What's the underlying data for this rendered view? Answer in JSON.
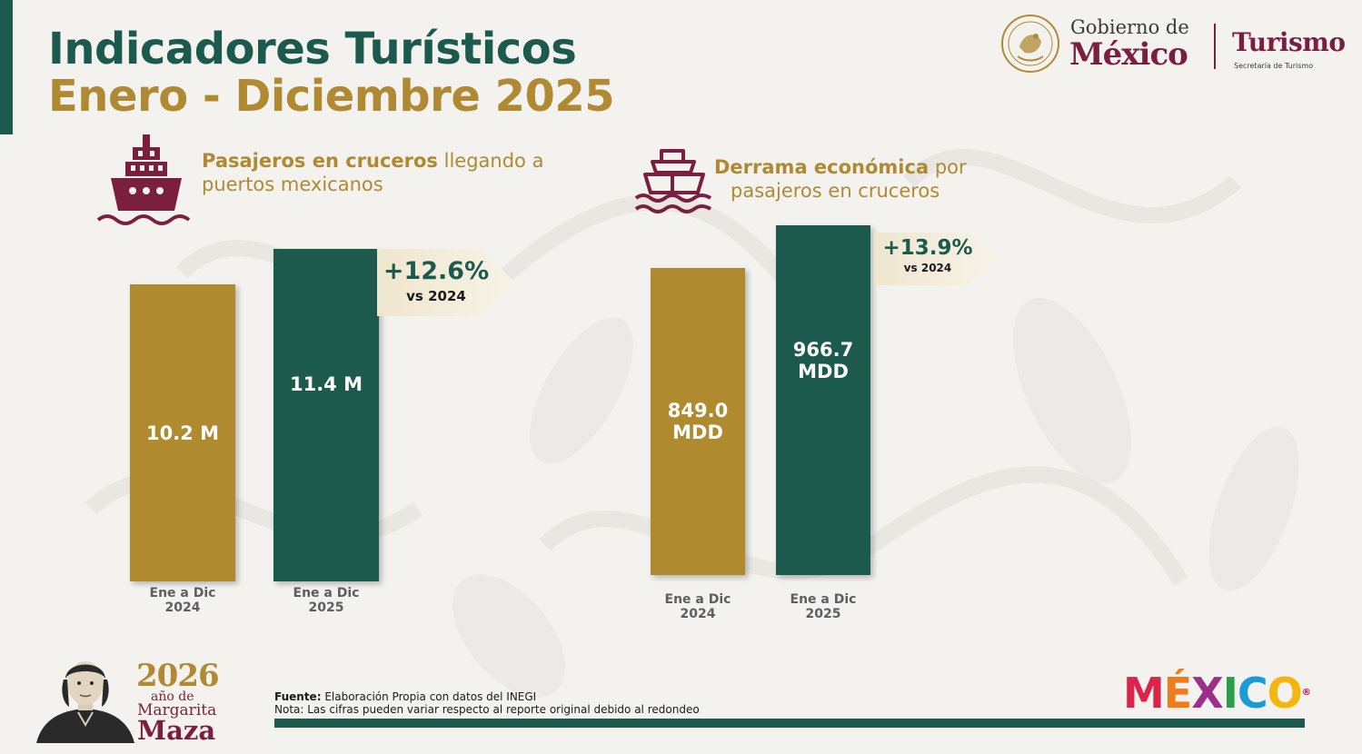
{
  "header": {
    "title_line1": "Indicadores Turísticos",
    "title_line2": "Enero - Diciembre 2025"
  },
  "logos": {
    "gobierno_line1": "Gobierno de",
    "gobierno_line2": "México",
    "turismo": "Turismo",
    "turismo_sub": "Secretaría de Turismo",
    "seal_text": "ESTADOS UNIDOS MEXICANOS",
    "seal_icon": "coat-of-arms-icon",
    "mexico_brand_letters": [
      "M",
      "É",
      "X",
      "I",
      "C",
      "O"
    ],
    "mexico_brand_colors": [
      "#d9254b",
      "#f07b1c",
      "#9b2f8a",
      "#2a9e4a",
      "#1c9ad6",
      "#f4b50f"
    ],
    "mexico_brand_reg": "®"
  },
  "colors": {
    "green": "#1b5a4c",
    "gold": "#b08a2e",
    "maroon": "#7a1f3d"
  },
  "panels": {
    "cruise_passengers": {
      "icon": "cruise-ship-icon",
      "heading_bold": "Pasajeros en cruceros",
      "heading_rest": "llegando a",
      "heading_line2": "puertos mexicanos",
      "change_pct": "+12.6%",
      "change_vs": "vs 2024"
    },
    "economic_spill": {
      "icon": "cruise-ship-waves-icon",
      "heading_bold": "Derrama económica",
      "heading_rest": "por",
      "heading_line2": "pasajeros en cruceros",
      "change_pct": "+13.9%",
      "change_vs": "vs 2024"
    }
  },
  "chart_data": [
    {
      "type": "bar",
      "title": "Pasajeros en cruceros llegando a puertos mexicanos",
      "categories": [
        "Ene a Dic 2024",
        "Ene a Dic 2025"
      ],
      "category_lines": [
        [
          "Ene a Dic",
          "2024"
        ],
        [
          "Ene a Dic",
          "2025"
        ]
      ],
      "values": [
        10.2,
        11.4
      ],
      "value_labels": [
        "10.2 M",
        "11.4 M"
      ],
      "unit": "M",
      "bar_colors": [
        "#b08a2e",
        "#1b5a4c"
      ],
      "annotation": "+12.6% vs 2024"
    },
    {
      "type": "bar",
      "title": "Derrama económica por pasajeros en cruceros",
      "categories": [
        "Ene a Dic 2024",
        "Ene a Dic 2025"
      ],
      "category_lines": [
        [
          "Ene a Dic",
          "2024"
        ],
        [
          "Ene a Dic",
          "2025"
        ]
      ],
      "values": [
        849.0,
        966.7
      ],
      "value_labels": [
        [
          "849.0",
          "MDD"
        ],
        [
          "966.7",
          "MDD"
        ]
      ],
      "unit": "MDD",
      "bar_colors": [
        "#b08a2e",
        "#1b5a4c"
      ],
      "annotation": "+13.9% vs 2024"
    }
  ],
  "footer": {
    "source_label": "Fuente:",
    "source_text": "Elaboración Propia con datos del INEGI",
    "note": "Nota: Las cifras pueden variar respecto al reporte original debido al redondeo",
    "year_badge": {
      "year": "2026",
      "line1": "año de",
      "line2": "Margarita",
      "line3": "Maza"
    }
  }
}
